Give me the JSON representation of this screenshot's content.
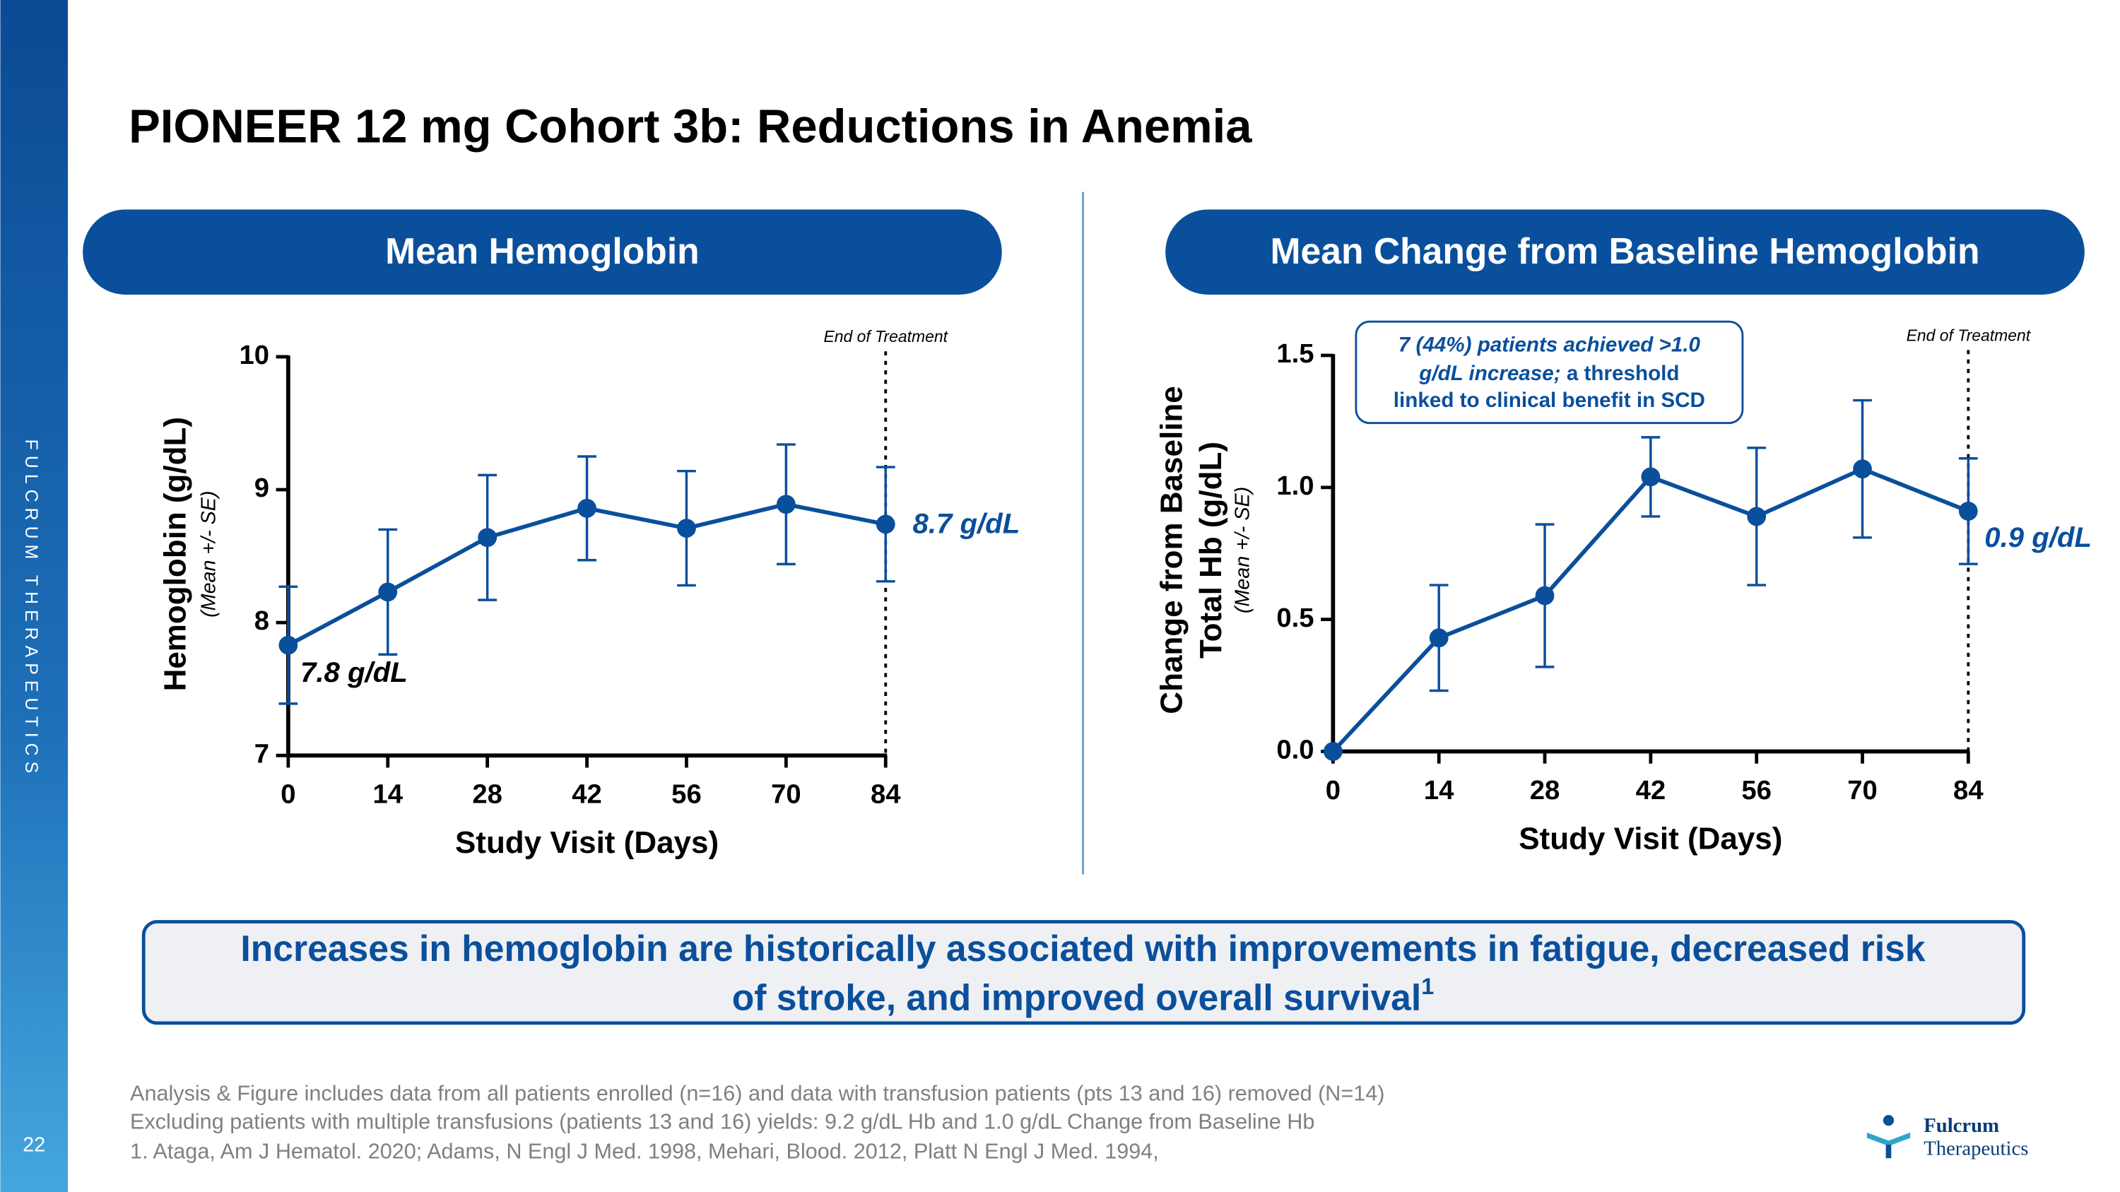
{
  "slide": {
    "title": "PIONEER 12 mg Cohort 3b: Reductions in Anemia",
    "sidebar": "FULCRUM THERAPEUTICS",
    "page_number": "22",
    "callout": [
      "Increases in hemoglobin are historically associated with improvements in fatigue, decreased risk",
      "of stroke, and improved overall survival"
    ],
    "callout_superscript": "1",
    "footnotes": [
      "Analysis & Figure includes data from all patients enrolled (n=16) and data with transfusion patients (pts 13 and 16) removed (N=14)",
      "Excluding patients with multiple transfusions (patients 13 and 16) yields: 9.2 g/dL Hb and 1.0 g/dL Change from Baseline Hb",
      "1. Ataga, Am J Hematol. 2020; Adams, N Engl J Med. 1998, Mehari, Blood. 2012, Platt N Engl J Med. 1994,"
    ],
    "logo": [
      "Fulcrum",
      "Therapeutics"
    ]
  },
  "chart_data": [
    {
      "type": "line",
      "title": "Mean Hemoglobin",
      "xlabel": "Study Visit (Days)",
      "ylabel": [
        "Hemoglobin (g/dL)"
      ],
      "ylabel_note": "(Mean +/- SE)",
      "x": [
        0,
        14,
        28,
        42,
        56,
        70,
        84
      ],
      "values": [
        7.83,
        8.23,
        8.64,
        8.86,
        8.71,
        8.89,
        8.74
      ],
      "errors": [
        0.44,
        0.47,
        0.47,
        0.39,
        0.43,
        0.45,
        0.43
      ],
      "color": "#0a4f9c",
      "xlim": [
        0,
        84
      ],
      "xticks": [
        0,
        14,
        28,
        42,
        56,
        70,
        84
      ],
      "ylim": [
        7,
        10
      ],
      "yticks": [
        7,
        8,
        9,
        10
      ],
      "end_label": "End of Treatment",
      "annotations": [
        "7.8 g/dL",
        "8.7 g/dL"
      ]
    },
    {
      "type": "line",
      "title": "Mean Change from Baseline Hemoglobin",
      "xlabel": "Study Visit (Days)",
      "ylabel": [
        "Change from Baseline",
        "Total Hb (g/dL)"
      ],
      "ylabel_note": "(Mean +/- SE)",
      "x": [
        0,
        14,
        28,
        42,
        56,
        70,
        84
      ],
      "values": [
        0.0,
        0.43,
        0.59,
        1.04,
        0.89,
        1.07,
        0.91
      ],
      "errors": [
        null,
        0.2,
        0.27,
        0.15,
        0.26,
        0.26,
        0.2
      ],
      "color": "#0a4f9c",
      "xlim": [
        0,
        84
      ],
      "xticks": [
        0,
        14,
        28,
        42,
        56,
        70,
        84
      ],
      "ylim": [
        0,
        1.5
      ],
      "yticks": [
        {
          "value": 0,
          "label": "0.0"
        },
        0.5,
        {
          "value": 1,
          "label": "1.0"
        },
        1.5
      ],
      "end_label": "End of Treatment",
      "annotations": [
        "0.9 g/dL"
      ],
      "note": [
        "7 (44%) patients achieved >1.0",
        "g/dL increase;",
        "a threshold",
        "linked to clinical benefit in SCD"
      ]
    }
  ]
}
